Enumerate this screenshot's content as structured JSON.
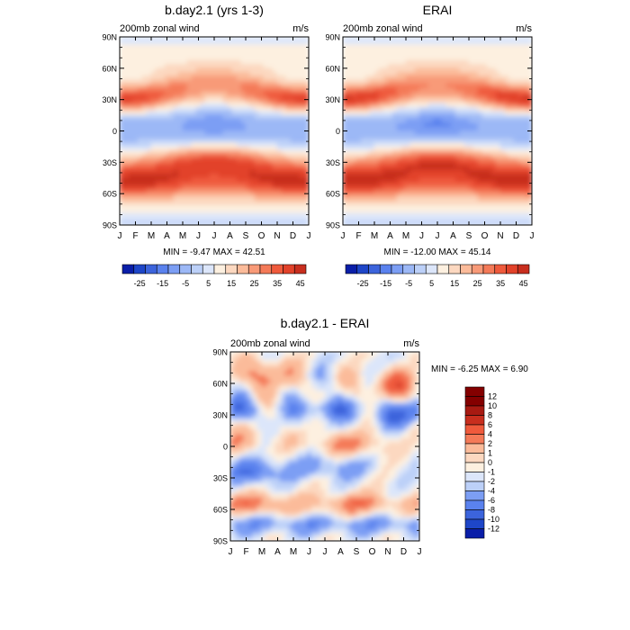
{
  "chart_data": [
    {
      "type": "heatmap",
      "title": "b.day2.1 (yrs 1-3)",
      "left_label": "200mb zonal wind",
      "right_label": "m/s",
      "x_ticks": [
        "J",
        "F",
        "M",
        "A",
        "M",
        "J",
        "J",
        "A",
        "S",
        "O",
        "N",
        "D",
        "J"
      ],
      "y_ticks": [
        "90N",
        "60N",
        "30N",
        "0",
        "30S",
        "60S",
        "90S"
      ],
      "y_range": [
        -90,
        90
      ],
      "stats": "MIN =  -9.47 MAX =  42.51",
      "min": -9.47,
      "max": 42.51,
      "colorbar_labels": [
        "-25",
        "-15",
        "-5",
        "5",
        "15",
        "25",
        "35",
        "45"
      ],
      "colorbar_levels": [
        -30,
        -25,
        -20,
        -15,
        -10,
        -5,
        0,
        5,
        10,
        15,
        20,
        25,
        30,
        35,
        40,
        45,
        50
      ],
      "features": {
        "nh_jet": {
          "lat": 30,
          "peak": 42,
          "peak_months": "Dec-Feb"
        },
        "sh_jet": {
          "lat": -30,
          "peak": 40,
          "peak_months": "Jun-Aug"
        },
        "sh_polar_jet": {
          "lat": -50,
          "peak": 30
        },
        "tropical_easterly": {
          "lat": 5,
          "min": -9,
          "peak_months": "Jul-Aug"
        }
      }
    },
    {
      "type": "heatmap",
      "title": "ERAI",
      "left_label": "200mb zonal wind",
      "right_label": "m/s",
      "x_ticks": [
        "J",
        "F",
        "M",
        "A",
        "M",
        "J",
        "J",
        "A",
        "S",
        "O",
        "N",
        "D",
        "J"
      ],
      "y_ticks": [
        "90N",
        "60N",
        "30N",
        "0",
        "30S",
        "60S",
        "90S"
      ],
      "y_range": [
        -90,
        90
      ],
      "stats": "MIN = -12.00 MAX =  45.14",
      "min": -12.0,
      "max": 45.14,
      "colorbar_labels": [
        "-25",
        "-15",
        "-5",
        "5",
        "15",
        "25",
        "35",
        "45"
      ],
      "colorbar_levels": [
        -30,
        -25,
        -20,
        -15,
        -10,
        -5,
        0,
        5,
        10,
        15,
        20,
        25,
        30,
        35,
        40,
        45,
        50
      ],
      "features": {
        "nh_jet": {
          "lat": 30,
          "peak": 45,
          "peak_months": "Dec-Feb"
        },
        "sh_jet": {
          "lat": -30,
          "peak": 41,
          "peak_months": "Jun-Aug"
        },
        "sh_polar_jet": {
          "lat": -50,
          "peak": 30
        },
        "tropical_easterly": {
          "lat": 5,
          "min": -12,
          "peak_months": "Jul-Aug"
        }
      }
    },
    {
      "type": "heatmap",
      "title": "b.day2.1 - ERAI",
      "left_label": "200mb zonal wind",
      "right_label": "m/s",
      "x_ticks": [
        "J",
        "F",
        "M",
        "A",
        "M",
        "J",
        "J",
        "A",
        "S",
        "O",
        "N",
        "D",
        "J"
      ],
      "y_ticks": [
        "90N",
        "60N",
        "30N",
        "0",
        "30S",
        "60S",
        "90S"
      ],
      "y_range": [
        -90,
        90
      ],
      "stats": "MIN =  -6.25 MAX =   6.90",
      "min": -6.25,
      "max": 6.9,
      "colorbar_labels": [
        "12",
        "10",
        "8",
        "6",
        "4",
        "2",
        "1",
        "0",
        "-1",
        "-2",
        "-4",
        "-6",
        "-8",
        "-10",
        "-12"
      ],
      "colorbar_levels": [
        -14,
        -12,
        -10,
        -8,
        -6,
        -4,
        -2,
        -1,
        0,
        1,
        2,
        4,
        6,
        8,
        10,
        12,
        14
      ]
    }
  ],
  "colors": {
    "blues": [
      "#00007f",
      "#0a1ea8",
      "#1e46c8",
      "#3c64dc",
      "#5a82ee",
      "#7c9ef4",
      "#9cb8f6",
      "#bcd0f8",
      "#dce6fa"
    ],
    "neutral": "#fdf0e0",
    "reds": [
      "#fcd8c0",
      "#fbbb9a",
      "#f89a78",
      "#f47a58",
      "#ef5a3c",
      "#e2422a",
      "#c82e1e",
      "#a81a12",
      "#840000"
    ]
  }
}
